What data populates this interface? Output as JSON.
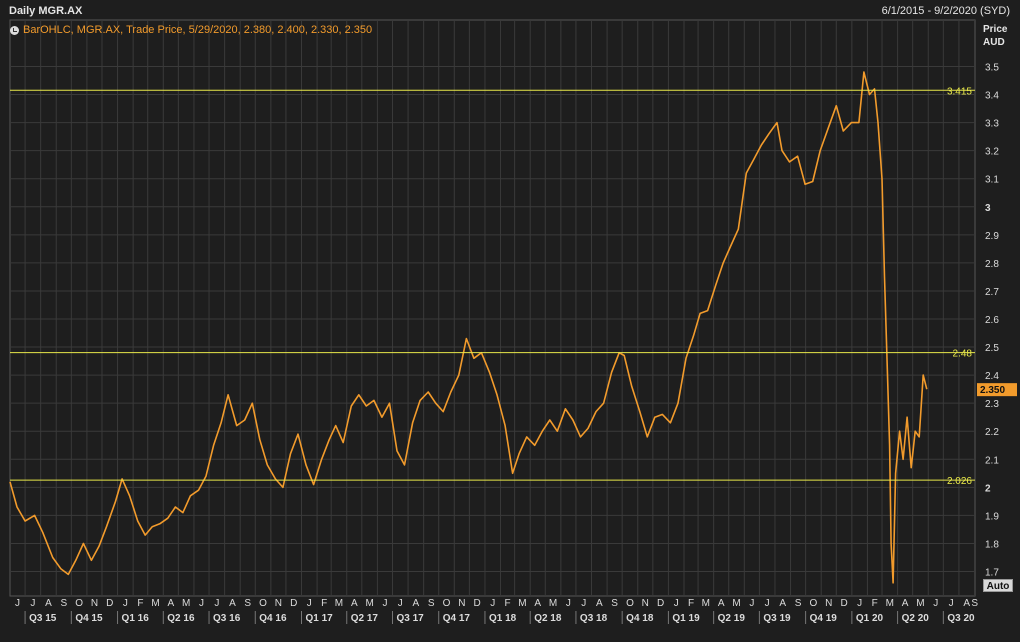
{
  "header": {
    "title": "Daily MGR.AX",
    "date_range": "6/1/2015 - 9/2/2020 (SYD)"
  },
  "legend": {
    "text": "BarOHLC, MGR.AX, Trade Price,  5/29/2020, 2.380, 2.400, 2.330, 2.350"
  },
  "axis": {
    "title_line1": "Price",
    "title_line2": "AUD",
    "auto_label": "Auto"
  },
  "colors": {
    "background": "#1e1e1e",
    "grid": "#3a3a3a",
    "price_line": "#f29b2c",
    "hlines": "#e8e84a",
    "current_price_bg": "#f29b2c"
  },
  "chart_data": {
    "type": "line",
    "title": "Daily MGR.AX",
    "series": [
      {
        "name": "MGR.AX",
        "points": [
          [
            "2015-06-01",
            2.02
          ],
          [
            "2015-06-15",
            1.93
          ],
          [
            "2015-07-01",
            1.88
          ],
          [
            "2015-07-20",
            1.9
          ],
          [
            "2015-08-05",
            1.84
          ],
          [
            "2015-08-25",
            1.75
          ],
          [
            "2015-09-10",
            1.71
          ],
          [
            "2015-09-25",
            1.69
          ],
          [
            "2015-10-10",
            1.74
          ],
          [
            "2015-10-25",
            1.8
          ],
          [
            "2015-11-10",
            1.74
          ],
          [
            "2015-11-25",
            1.79
          ],
          [
            "2015-12-10",
            1.86
          ],
          [
            "2015-12-28",
            1.95
          ],
          [
            "2016-01-10",
            2.03
          ],
          [
            "2016-01-25",
            1.97
          ],
          [
            "2016-02-10",
            1.88
          ],
          [
            "2016-02-25",
            1.83
          ],
          [
            "2016-03-10",
            1.86
          ],
          [
            "2016-03-25",
            1.87
          ],
          [
            "2016-04-10",
            1.89
          ],
          [
            "2016-04-25",
            1.93
          ],
          [
            "2016-05-10",
            1.91
          ],
          [
            "2016-05-25",
            1.97
          ],
          [
            "2016-06-10",
            1.99
          ],
          [
            "2016-06-25",
            2.04
          ],
          [
            "2016-07-10",
            2.15
          ],
          [
            "2016-07-25",
            2.23
          ],
          [
            "2016-08-08",
            2.33
          ],
          [
            "2016-08-25",
            2.22
          ],
          [
            "2016-09-10",
            2.24
          ],
          [
            "2016-09-25",
            2.3
          ],
          [
            "2016-10-10",
            2.17
          ],
          [
            "2016-10-25",
            2.08
          ],
          [
            "2016-11-10",
            2.03
          ],
          [
            "2016-11-25",
            2.0
          ],
          [
            "2016-12-10",
            2.12
          ],
          [
            "2016-12-25",
            2.19
          ],
          [
            "2017-01-10",
            2.08
          ],
          [
            "2017-01-25",
            2.01
          ],
          [
            "2017-02-10",
            2.1
          ],
          [
            "2017-02-25",
            2.17
          ],
          [
            "2017-03-10",
            2.22
          ],
          [
            "2017-03-25",
            2.16
          ],
          [
            "2017-04-10",
            2.29
          ],
          [
            "2017-04-25",
            2.33
          ],
          [
            "2017-05-10",
            2.29
          ],
          [
            "2017-05-25",
            2.31
          ],
          [
            "2017-06-10",
            2.25
          ],
          [
            "2017-06-25",
            2.3
          ],
          [
            "2017-07-10",
            2.13
          ],
          [
            "2017-07-25",
            2.08
          ],
          [
            "2017-08-10",
            2.23
          ],
          [
            "2017-08-25",
            2.31
          ],
          [
            "2017-09-10",
            2.34
          ],
          [
            "2017-09-25",
            2.3
          ],
          [
            "2017-10-10",
            2.27
          ],
          [
            "2017-10-25",
            2.34
          ],
          [
            "2017-11-10",
            2.4
          ],
          [
            "2017-11-25",
            2.53
          ],
          [
            "2017-12-10",
            2.46
          ],
          [
            "2017-12-25",
            2.48
          ],
          [
            "2018-01-10",
            2.41
          ],
          [
            "2018-01-25",
            2.33
          ],
          [
            "2018-02-10",
            2.22
          ],
          [
            "2018-02-25",
            2.05
          ],
          [
            "2018-03-10",
            2.12
          ],
          [
            "2018-03-25",
            2.18
          ],
          [
            "2018-04-10",
            2.15
          ],
          [
            "2018-04-25",
            2.2
          ],
          [
            "2018-05-10",
            2.24
          ],
          [
            "2018-05-25",
            2.2
          ],
          [
            "2018-06-10",
            2.28
          ],
          [
            "2018-06-25",
            2.24
          ],
          [
            "2018-07-10",
            2.18
          ],
          [
            "2018-07-25",
            2.21
          ],
          [
            "2018-08-10",
            2.27
          ],
          [
            "2018-08-25",
            2.3
          ],
          [
            "2018-09-10",
            2.41
          ],
          [
            "2018-09-25",
            2.48
          ],
          [
            "2018-10-05",
            2.47
          ],
          [
            "2018-10-20",
            2.36
          ],
          [
            "2018-11-05",
            2.27
          ],
          [
            "2018-11-20",
            2.18
          ],
          [
            "2018-12-05",
            2.25
          ],
          [
            "2018-12-20",
            2.26
          ],
          [
            "2019-01-05",
            2.23
          ],
          [
            "2019-01-20",
            2.3
          ],
          [
            "2019-02-05",
            2.46
          ],
          [
            "2019-02-20",
            2.54
          ],
          [
            "2019-03-05",
            2.62
          ],
          [
            "2019-03-20",
            2.63
          ],
          [
            "2019-04-05",
            2.72
          ],
          [
            "2019-04-20",
            2.8
          ],
          [
            "2019-05-05",
            2.86
          ],
          [
            "2019-05-20",
            2.92
          ],
          [
            "2019-06-05",
            3.12
          ],
          [
            "2019-06-20",
            3.17
          ],
          [
            "2019-07-05",
            3.22
          ],
          [
            "2019-07-20",
            3.26
          ],
          [
            "2019-08-05",
            3.3
          ],
          [
            "2019-08-15",
            3.2
          ],
          [
            "2019-08-30",
            3.16
          ],
          [
            "2019-09-15",
            3.18
          ],
          [
            "2019-09-30",
            3.08
          ],
          [
            "2019-10-15",
            3.09
          ],
          [
            "2019-10-30",
            3.2
          ],
          [
            "2019-11-15",
            3.28
          ],
          [
            "2019-12-01",
            3.36
          ],
          [
            "2019-12-15",
            3.27
          ],
          [
            "2019-12-31",
            3.3
          ],
          [
            "2020-01-15",
            3.3
          ],
          [
            "2020-01-25",
            3.48
          ],
          [
            "2020-02-05",
            3.4
          ],
          [
            "2020-02-15",
            3.42
          ],
          [
            "2020-02-22",
            3.3
          ],
          [
            "2020-03-01",
            3.1
          ],
          [
            "2020-03-06",
            2.75
          ],
          [
            "2020-03-12",
            2.4
          ],
          [
            "2020-03-16",
            2.15
          ],
          [
            "2020-03-19",
            1.8
          ],
          [
            "2020-03-23",
            1.66
          ],
          [
            "2020-03-28",
            2.05
          ],
          [
            "2020-04-05",
            2.2
          ],
          [
            "2020-04-12",
            2.1
          ],
          [
            "2020-04-20",
            2.25
          ],
          [
            "2020-04-28",
            2.07
          ],
          [
            "2020-05-06",
            2.2
          ],
          [
            "2020-05-14",
            2.18
          ],
          [
            "2020-05-22",
            2.4
          ],
          [
            "2020-05-29",
            2.35
          ]
        ]
      }
    ],
    "horizontal_lines": [
      {
        "value": 3.415,
        "label": "3.415"
      },
      {
        "value": 2.48,
        "label": "2.48"
      },
      {
        "value": 2.026,
        "label": "2.026"
      }
    ],
    "last_price": {
      "value": 2.35,
      "label": "2.350"
    },
    "y_ticks": [
      "3.5",
      "3.4",
      "3.3",
      "3.2",
      "3.1",
      "3",
      "2.9",
      "2.8",
      "2.7",
      "2.6",
      "2.5",
      "2.4",
      "2.3",
      "2.2",
      "2.1",
      "2",
      "1.9",
      "1.8",
      "1.7"
    ],
    "y_tick_values": [
      3.5,
      3.4,
      3.3,
      3.2,
      3.1,
      3.0,
      2.9,
      2.8,
      2.7,
      2.6,
      2.5,
      2.4,
      2.3,
      2.2,
      2.1,
      2.0,
      1.9,
      1.8,
      1.7
    ],
    "ylim": [
      1.62,
      3.58
    ],
    "x_range": [
      "2015-06-01",
      "2020-09-02"
    ],
    "month_labels": [
      "J",
      "J",
      "A",
      "S",
      "O",
      "N",
      "D",
      "J",
      "F",
      "M",
      "A",
      "M",
      "J",
      "J",
      "A",
      "S",
      "O",
      "N",
      "D",
      "J",
      "F",
      "M",
      "A",
      "M",
      "J",
      "J",
      "A",
      "S",
      "O",
      "N",
      "D",
      "J",
      "F",
      "M",
      "A",
      "M",
      "J",
      "J",
      "A",
      "S",
      "O",
      "N",
      "D",
      "J",
      "F",
      "M",
      "A",
      "M",
      "J",
      "J",
      "A",
      "S",
      "O",
      "N",
      "D",
      "J",
      "F",
      "M",
      "A",
      "M",
      "J",
      "J",
      "A",
      "S"
    ],
    "quarter_labels": [
      "Q3 15",
      "Q4 15",
      "Q1 16",
      "Q2 16",
      "Q3 16",
      "Q4 16",
      "Q1 17",
      "Q2 17",
      "Q3 17",
      "Q4 17",
      "Q1 18",
      "Q2 18",
      "Q3 18",
      "Q4 18",
      "Q1 19",
      "Q2 19",
      "Q3 19",
      "Q4 19",
      "Q1 20",
      "Q2 20",
      "Q3 20"
    ],
    "grid": true,
    "legend_position": "top-left"
  }
}
